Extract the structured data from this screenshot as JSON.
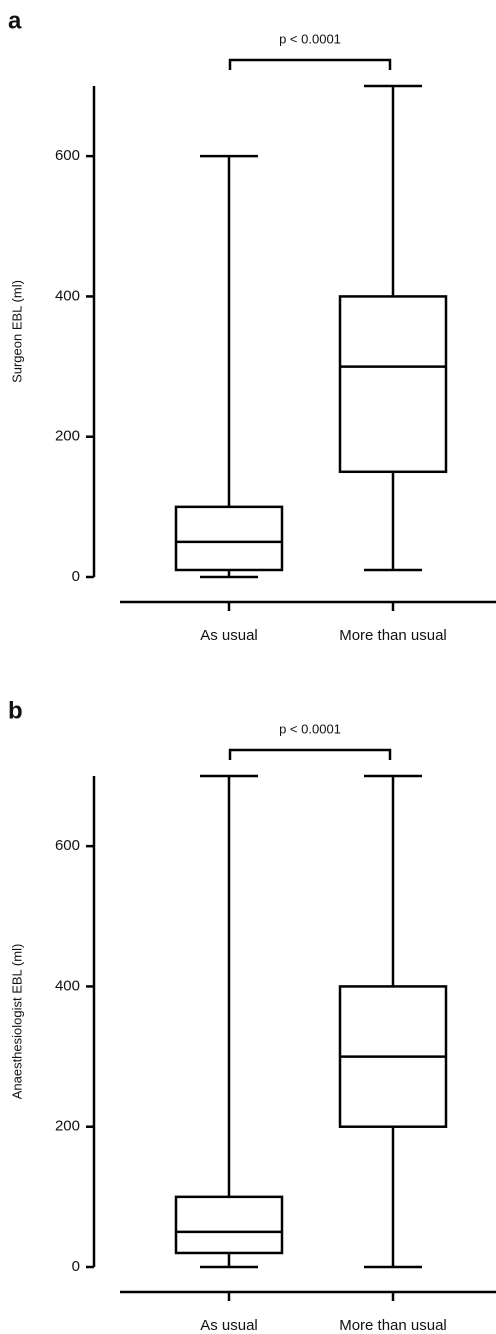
{
  "chart_data": [
    {
      "type": "box",
      "panel": "a",
      "annotation": "p < 0.0001",
      "ylabel": "Surgeon EBL (ml)",
      "categories": [
        "As usual",
        "More than usual"
      ],
      "min": [
        0,
        10
      ],
      "q1": [
        10,
        150
      ],
      "median": [
        50,
        300
      ],
      "q3": [
        100,
        400
      ],
      "max": [
        600,
        700
      ],
      "ylim": [
        0,
        700
      ],
      "yticks": [
        0,
        200,
        400,
        600
      ],
      "color": "#000000",
      "grid": false
    },
    {
      "type": "box",
      "panel": "b",
      "annotation": "p < 0.0001",
      "ylabel": "Anaesthesiologist EBL (ml)",
      "categories": [
        "As usual",
        "More than usual"
      ],
      "min": [
        0,
        0
      ],
      "q1": [
        20,
        200
      ],
      "median": [
        50,
        300
      ],
      "q3": [
        100,
        400
      ],
      "max": [
        700,
        700
      ],
      "ylim": [
        0,
        700
      ],
      "yticks": [
        0,
        200,
        400,
        600
      ],
      "color": "#000000",
      "grid": false
    }
  ]
}
